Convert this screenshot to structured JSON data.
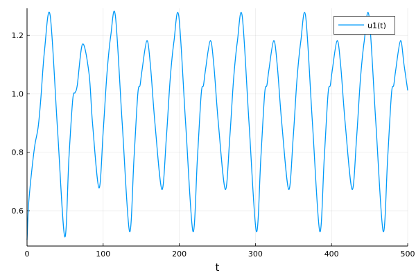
{
  "chart_data": {
    "type": "line",
    "title": "",
    "xlabel": "t",
    "ylabel": "",
    "xlim": [
      0,
      500
    ],
    "ylim": [
      0.479,
      1.293
    ],
    "xticks": [
      0,
      100,
      200,
      300,
      400,
      500
    ],
    "xtick_labels": [
      "0",
      "100",
      "200",
      "300",
      "400",
      "500"
    ],
    "yticks": [
      0.6,
      0.8,
      1.0,
      1.2
    ],
    "ytick_labels": [
      "0.6",
      "0.8",
      "1.0",
      "1.2"
    ],
    "grid": true,
    "legend_position": "top-right",
    "series": [
      {
        "name": "u1(t)",
        "color": "#009af9",
        "x": [
          0,
          2,
          5.5,
          10,
          14.6,
          18,
          23,
          30.3,
          40,
          49.5,
          55,
          60,
          63.2,
          66,
          73,
          81.5,
          86,
          94.5,
          100,
          105,
          110,
          116,
          125,
          134.6,
          140.5,
          145.5,
          148.5,
          151,
          157.4,
          162,
          168,
          177.1,
          183,
          188,
          193,
          199.3,
          208.3,
          217.9,
          223.8,
          228.8,
          231.8,
          234.3,
          240.7,
          245.3,
          251.3,
          260.4,
          266.3,
          271.3,
          276.3,
          282.6,
          291.6,
          301.2,
          307.1,
          312.1,
          315.1,
          317.6,
          324,
          328.6,
          334.6,
          343.7,
          349.6,
          354.6,
          359.6,
          365.9,
          374.9,
          384.5,
          390.4,
          395.4,
          398.4,
          400.9,
          407.3,
          411.9,
          417.9,
          427,
          432.9,
          437.9,
          442.9,
          449.2,
          458.2,
          467.8,
          473.7,
          478.7,
          481.7,
          484.2,
          490.6,
          495.2,
          500
        ],
        "y": [
          0.5,
          0.62,
          0.72,
          0.82,
          0.886,
          0.98,
          1.15,
          1.27,
          0.88,
          0.511,
          0.78,
          0.98,
          1.005,
          1.03,
          1.171,
          1.068,
          0.9,
          0.678,
          0.87,
          1.07,
          1.2,
          1.268,
          0.9,
          0.529,
          0.78,
          1.0,
          1.03,
          1.08,
          1.182,
          1.1,
          0.9,
          0.673,
          0.85,
          1.05,
          1.18,
          1.267,
          0.9,
          0.529,
          0.78,
          1.0,
          1.03,
          1.08,
          1.182,
          1.1,
          0.9,
          0.673,
          0.85,
          1.05,
          1.18,
          1.267,
          0.9,
          0.529,
          0.78,
          1.0,
          1.03,
          1.08,
          1.182,
          1.1,
          0.9,
          0.673,
          0.85,
          1.05,
          1.18,
          1.267,
          0.9,
          0.529,
          0.78,
          1.0,
          1.03,
          1.08,
          1.182,
          1.1,
          0.9,
          0.673,
          0.85,
          1.05,
          1.18,
          1.267,
          0.9,
          0.529,
          0.78,
          1.0,
          1.03,
          1.08,
          1.182,
          1.1,
          1.012
        ]
      }
    ]
  }
}
